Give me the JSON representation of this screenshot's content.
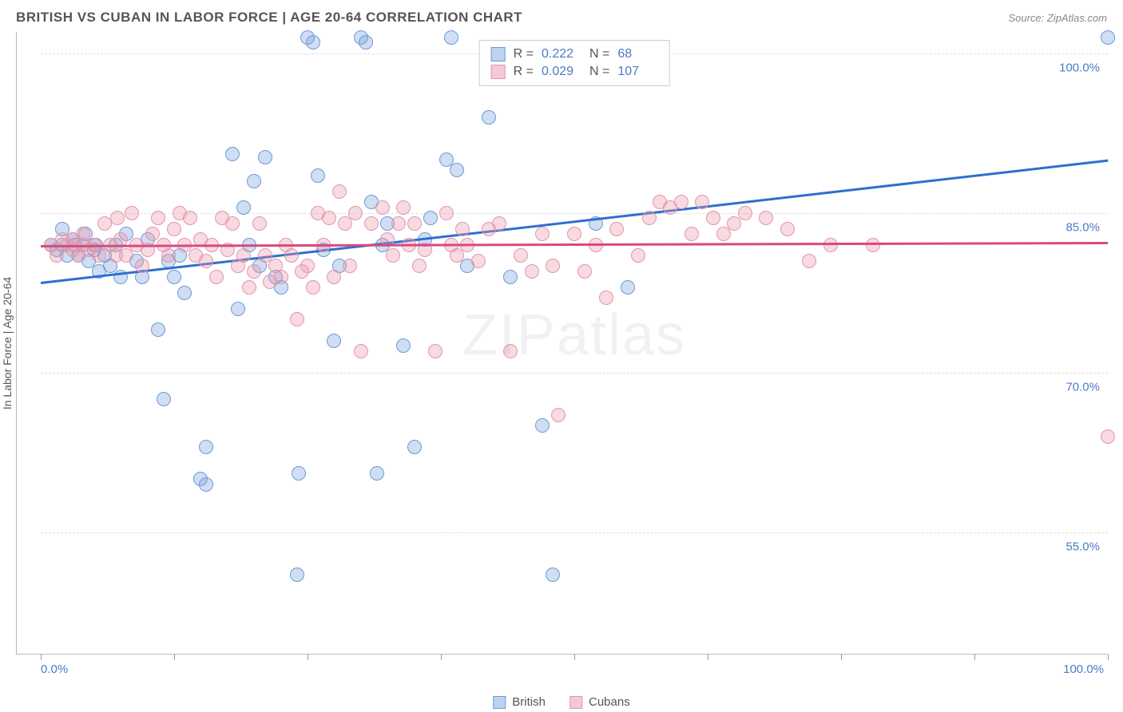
{
  "title": "BRITISH VS CUBAN IN LABOR FORCE | AGE 20-64 CORRELATION CHART",
  "source": "Source: ZipAtlas.com",
  "ylabel": "In Labor Force | Age 20-64",
  "watermark": "ZIPatlas",
  "chart": {
    "type": "scatter",
    "xlim": [
      0,
      100
    ],
    "ylim": [
      45,
      102
    ],
    "xtick_positions": [
      0,
      12.5,
      25,
      37.5,
      50,
      62.5,
      75,
      87.5,
      100
    ],
    "xtick_labels_shown": {
      "0": "0.0%",
      "100": "100.0%"
    },
    "ytick_positions": [
      55,
      70,
      85,
      100
    ],
    "ytick_labels": [
      "55.0%",
      "70.0%",
      "85.0%",
      "100.0%"
    ],
    "background_color": "#ffffff",
    "grid_color": "#dddddd",
    "series": [
      {
        "name": "British",
        "color_fill": "rgba(120,160,220,0.35)",
        "color_stroke": "#6a9bd8",
        "legend_fill": "#bcd3ef",
        "legend_border": "#6a9bd8",
        "trend_color": "#2e6fd0",
        "R": "0.222",
        "N": "68",
        "trend_y_at_x0": 78.5,
        "trend_y_at_x100": 90.0,
        "marker_radius": 9,
        "points": [
          [
            1,
            82
          ],
          [
            1.5,
            81.5
          ],
          [
            2,
            82
          ],
          [
            2,
            83.5
          ],
          [
            2.5,
            81
          ],
          [
            3,
            82.5
          ],
          [
            3.2,
            82
          ],
          [
            3.5,
            81
          ],
          [
            4,
            82
          ],
          [
            4.2,
            83
          ],
          [
            4.5,
            80.5
          ],
          [
            5,
            81.5
          ],
          [
            5.2,
            82
          ],
          [
            5.5,
            79.5
          ],
          [
            6,
            81
          ],
          [
            6.5,
            80
          ],
          [
            7,
            82
          ],
          [
            7.5,
            79
          ],
          [
            8,
            83
          ],
          [
            9,
            80.5
          ],
          [
            9.5,
            79
          ],
          [
            10,
            82.5
          ],
          [
            11,
            74
          ],
          [
            11.5,
            67.5
          ],
          [
            12,
            80.5
          ],
          [
            12.5,
            79
          ],
          [
            13,
            81
          ],
          [
            13.5,
            77.5
          ],
          [
            15,
            60
          ],
          [
            15.5,
            63
          ],
          [
            15.5,
            59.5
          ],
          [
            18,
            90.5
          ],
          [
            18.5,
            76
          ],
          [
            19,
            85.5
          ],
          [
            19.5,
            82
          ],
          [
            20,
            88
          ],
          [
            20.5,
            80
          ],
          [
            21,
            90.2
          ],
          [
            22,
            79
          ],
          [
            22.5,
            78
          ],
          [
            24,
            51
          ],
          [
            24.2,
            60.5
          ],
          [
            25.5,
            101
          ],
          [
            25,
            101.5
          ],
          [
            26,
            88.5
          ],
          [
            26.5,
            81.5
          ],
          [
            27.5,
            73
          ],
          [
            28,
            80
          ],
          [
            30,
            101.5
          ],
          [
            30.5,
            101
          ],
          [
            31,
            86
          ],
          [
            31.5,
            60.5
          ],
          [
            32,
            82
          ],
          [
            32.5,
            84
          ],
          [
            34,
            72.5
          ],
          [
            35,
            63
          ],
          [
            36,
            82.5
          ],
          [
            36.5,
            84.5
          ],
          [
            38,
            90
          ],
          [
            38.5,
            101.5
          ],
          [
            39,
            89
          ],
          [
            40,
            80
          ],
          [
            42,
            94
          ],
          [
            44,
            79
          ],
          [
            47,
            65
          ],
          [
            48,
            51
          ],
          [
            52,
            84
          ],
          [
            55,
            78
          ],
          [
            100,
            101.5
          ]
        ]
      },
      {
        "name": "Cubans",
        "color_fill": "rgba(235,150,170,0.35)",
        "color_stroke": "#e395ac",
        "legend_fill": "#f4c9d5",
        "legend_border": "#e395ac",
        "trend_color": "#d84a7e",
        "R": "0.029",
        "N": "107",
        "trend_y_at_x0": 82.0,
        "trend_y_at_x100": 82.3,
        "marker_radius": 9,
        "points": [
          [
            1,
            82
          ],
          [
            1.5,
            81
          ],
          [
            2,
            82.5
          ],
          [
            2.5,
            82
          ],
          [
            3,
            81.5
          ],
          [
            3,
            82.5
          ],
          [
            3.5,
            81
          ],
          [
            4,
            82
          ],
          [
            4,
            83
          ],
          [
            4.5,
            81.5
          ],
          [
            5,
            82
          ],
          [
            5.5,
            81
          ],
          [
            6,
            84
          ],
          [
            6.5,
            82
          ],
          [
            7,
            81
          ],
          [
            7.2,
            84.5
          ],
          [
            7.5,
            82.5
          ],
          [
            8,
            81
          ],
          [
            8.5,
            85
          ],
          [
            9,
            82
          ],
          [
            9.5,
            80
          ],
          [
            10,
            81.5
          ],
          [
            10.5,
            83
          ],
          [
            11,
            84.5
          ],
          [
            11.5,
            82
          ],
          [
            12,
            81
          ],
          [
            12.5,
            83.5
          ],
          [
            13,
            85
          ],
          [
            13.5,
            82
          ],
          [
            14,
            84.5
          ],
          [
            14.5,
            81
          ],
          [
            15,
            82.5
          ],
          [
            15.5,
            80.5
          ],
          [
            16,
            82
          ],
          [
            16.5,
            79
          ],
          [
            17,
            84.5
          ],
          [
            17.5,
            81.5
          ],
          [
            18,
            84
          ],
          [
            18.5,
            80
          ],
          [
            19,
            81
          ],
          [
            19.5,
            78
          ],
          [
            20,
            79.5
          ],
          [
            20.5,
            84
          ],
          [
            21,
            81
          ],
          [
            21.5,
            78.5
          ],
          [
            22,
            80
          ],
          [
            22.5,
            79
          ],
          [
            23,
            82
          ],
          [
            23.5,
            81
          ],
          [
            24,
            75
          ],
          [
            24.5,
            79.5
          ],
          [
            25,
            80
          ],
          [
            25.5,
            78
          ],
          [
            26,
            85
          ],
          [
            26.5,
            82
          ],
          [
            27,
            84.5
          ],
          [
            27.5,
            79
          ],
          [
            28,
            87
          ],
          [
            28.5,
            84
          ],
          [
            29,
            80
          ],
          [
            29.5,
            85
          ],
          [
            30,
            72
          ],
          [
            31,
            84
          ],
          [
            32,
            85.5
          ],
          [
            32.5,
            82.5
          ],
          [
            33,
            81
          ],
          [
            33.5,
            84
          ],
          [
            34,
            85.5
          ],
          [
            34.5,
            82
          ],
          [
            35,
            84
          ],
          [
            35.5,
            80
          ],
          [
            36,
            81.5
          ],
          [
            37,
            72
          ],
          [
            38,
            85
          ],
          [
            38.5,
            82
          ],
          [
            39,
            81
          ],
          [
            39.5,
            83.5
          ],
          [
            40,
            82
          ],
          [
            41,
            80.5
          ],
          [
            42,
            83.5
          ],
          [
            43,
            84
          ],
          [
            44,
            72
          ],
          [
            45,
            81
          ],
          [
            46,
            79.5
          ],
          [
            47,
            83
          ],
          [
            48,
            80
          ],
          [
            48.5,
            66
          ],
          [
            50,
            83
          ],
          [
            51,
            79.5
          ],
          [
            52,
            82
          ],
          [
            53,
            77
          ],
          [
            54,
            83.5
          ],
          [
            56,
            81
          ],
          [
            57,
            84.5
          ],
          [
            58,
            86
          ],
          [
            59,
            85.5
          ],
          [
            60,
            86
          ],
          [
            61,
            83
          ],
          [
            62,
            86
          ],
          [
            63,
            84.5
          ],
          [
            64,
            83
          ],
          [
            65,
            84
          ],
          [
            66,
            85
          ],
          [
            68,
            84.5
          ],
          [
            70,
            83.5
          ],
          [
            72,
            80.5
          ],
          [
            74,
            82
          ],
          [
            78,
            82
          ],
          [
            100,
            64
          ]
        ]
      }
    ]
  },
  "legend_bottom": [
    {
      "label": "British",
      "fill": "#bcd3ef",
      "border": "#6a9bd8"
    },
    {
      "label": "Cubans",
      "fill": "#f4c9d5",
      "border": "#e395ac"
    }
  ]
}
